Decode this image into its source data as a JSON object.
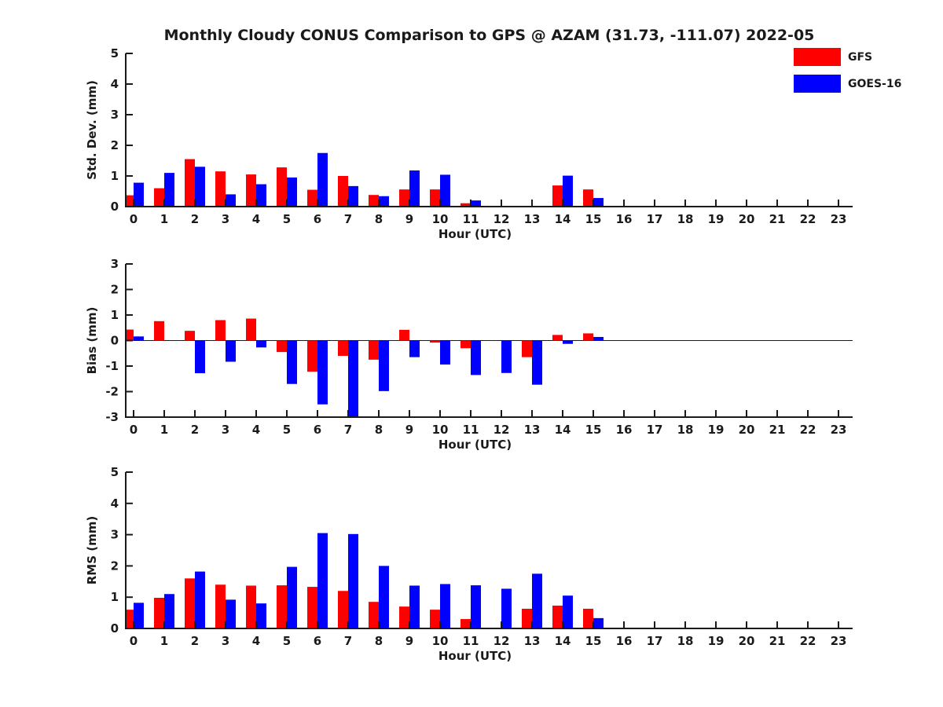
{
  "title": "Monthly Cloudy CONUS Comparison to GPS @ AZAM (31.73, -111.07) 2022-05",
  "legend": {
    "items": [
      {
        "label": "GFS",
        "color": "#ff0000"
      },
      {
        "label": "GOES-16",
        "color": "#0000ff"
      }
    ]
  },
  "chart_data": [
    {
      "id": "std-dev",
      "type": "bar",
      "title": "",
      "xlabel": "Hour (UTC)",
      "ylabel": "Std. Dev. (mm)",
      "ylim": [
        0,
        5
      ],
      "yticks": [
        0,
        1,
        2,
        3,
        4,
        5
      ],
      "grid": false,
      "categories": [
        0,
        1,
        2,
        3,
        4,
        5,
        6,
        7,
        8,
        9,
        10,
        11,
        12,
        13,
        14,
        15,
        16,
        17,
        18,
        19,
        20,
        21,
        22,
        23
      ],
      "series": [
        {
          "name": "GFS",
          "color": "#ff0000",
          "values": [
            0.37,
            0.6,
            1.55,
            1.15,
            1.05,
            1.28,
            0.55,
            1.0,
            0.38,
            0.56,
            0.56,
            0.11,
            0,
            0,
            0.69,
            0.56,
            0,
            0,
            0,
            0,
            0,
            0,
            0,
            0
          ]
        },
        {
          "name": "GOES-16",
          "color": "#0000ff",
          "values": [
            0.78,
            1.1,
            1.3,
            0.4,
            0.73,
            0.95,
            1.75,
            0.67,
            0.34,
            1.18,
            1.04,
            0.2,
            0,
            0,
            1.01,
            0.28,
            0,
            0,
            0,
            0,
            0,
            0,
            0,
            0
          ]
        }
      ]
    },
    {
      "id": "bias",
      "type": "bar",
      "title": "",
      "xlabel": "Hour (UTC)",
      "ylabel": "Bias (mm)",
      "ylim": [
        -3,
        3
      ],
      "yticks": [
        -3,
        -2,
        -1,
        0,
        1,
        2,
        3
      ],
      "grid": false,
      "zero_line": true,
      "categories": [
        0,
        1,
        2,
        3,
        4,
        5,
        6,
        7,
        8,
        9,
        10,
        11,
        12,
        13,
        14,
        15,
        16,
        17,
        18,
        19,
        20,
        21,
        22,
        23
      ],
      "series": [
        {
          "name": "GFS",
          "color": "#ff0000",
          "values": [
            0.43,
            0.76,
            0.38,
            0.8,
            0.86,
            -0.45,
            -1.22,
            -0.6,
            -0.75,
            0.42,
            -0.08,
            -0.3,
            0,
            -0.65,
            0.22,
            0.28,
            0,
            0,
            0,
            0,
            0,
            0,
            0,
            0
          ]
        },
        {
          "name": "GOES-16",
          "color": "#0000ff",
          "values": [
            0.16,
            0,
            -1.28,
            -0.83,
            -0.27,
            -1.7,
            -2.5,
            -3.0,
            -1.98,
            -0.65,
            -0.94,
            -1.35,
            -1.27,
            -1.73,
            -0.13,
            0.14,
            0,
            0,
            0,
            0,
            0,
            0,
            0,
            0
          ]
        }
      ]
    },
    {
      "id": "rms",
      "type": "bar",
      "title": "",
      "xlabel": "Hour (UTC)",
      "ylabel": "RMS (mm)",
      "ylim": [
        0,
        5
      ],
      "yticks": [
        0,
        1,
        2,
        3,
        4,
        5
      ],
      "grid": false,
      "categories": [
        0,
        1,
        2,
        3,
        4,
        5,
        6,
        7,
        8,
        9,
        10,
        11,
        12,
        13,
        14,
        15,
        16,
        17,
        18,
        19,
        20,
        21,
        22,
        23
      ],
      "series": [
        {
          "name": "GFS",
          "color": "#ff0000",
          "values": [
            0.6,
            0.98,
            1.6,
            1.4,
            1.37,
            1.38,
            1.33,
            1.2,
            0.85,
            0.7,
            0.6,
            0.3,
            0,
            0.63,
            0.73,
            0.63,
            0,
            0,
            0,
            0,
            0,
            0,
            0,
            0
          ]
        },
        {
          "name": "GOES-16",
          "color": "#0000ff",
          "values": [
            0.82,
            1.1,
            1.82,
            0.92,
            0.8,
            1.97,
            3.05,
            3.02,
            2.0,
            1.37,
            1.42,
            1.38,
            1.27,
            1.75,
            1.05,
            0.33,
            0,
            0,
            0,
            0,
            0,
            0,
            0,
            0
          ]
        }
      ]
    }
  ]
}
